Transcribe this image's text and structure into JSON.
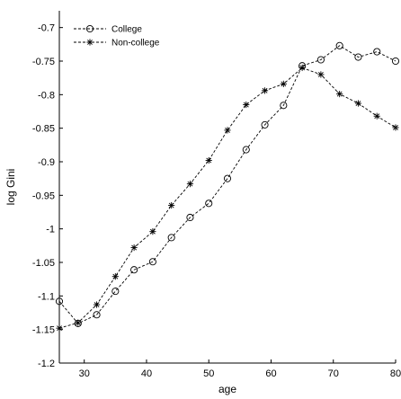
{
  "chart_data": {
    "type": "line",
    "title": "",
    "xlabel": "age",
    "ylabel": "log Gini",
    "xlim": [
      26,
      80
    ],
    "ylim": [
      -1.2,
      -0.675
    ],
    "grid": false,
    "legend_position": "top-left",
    "x_ticks": [
      30,
      40,
      50,
      60,
      70,
      80
    ],
    "y_ticks": [
      -0.7,
      -0.75,
      -0.8,
      -0.85,
      -0.9,
      -0.95,
      -1,
      -1.05,
      -1.1,
      -1.15,
      -1.2
    ],
    "x_tick_labels": [
      "30",
      "40",
      "50",
      "60",
      "70",
      "80"
    ],
    "y_tick_labels": [
      "-0.7",
      "-0.75",
      "-0.8",
      "-0.85",
      "-0.9",
      "-0.95",
      "-1",
      "-1.05",
      "-1.1",
      "-1.15",
      "-1.2"
    ],
    "series": [
      {
        "name": "College",
        "marker": "circle",
        "color": "#000000",
        "x": [
          26,
          29,
          32,
          35,
          38,
          41,
          44,
          47,
          50,
          53,
          56,
          59,
          62,
          65,
          68,
          71,
          74,
          77,
          80
        ],
        "y": [
          -1.108,
          -1.141,
          -1.128,
          -1.093,
          -1.061,
          -1.049,
          -1.013,
          -0.983,
          -0.962,
          -0.925,
          -0.882,
          -0.845,
          -0.816,
          -0.757,
          -0.748,
          -0.727,
          -0.744,
          -0.736,
          -0.75
        ]
      },
      {
        "name": "Non-college",
        "marker": "asterisk",
        "color": "#000000",
        "x": [
          26,
          29,
          32,
          35,
          38,
          41,
          44,
          47,
          50,
          53,
          56,
          59,
          62,
          65,
          68,
          71,
          74,
          77,
          80
        ],
        "y": [
          -1.148,
          -1.14,
          -1.113,
          -1.071,
          -1.028,
          -1.004,
          -0.965,
          -0.933,
          -0.898,
          -0.853,
          -0.815,
          -0.794,
          -0.784,
          -0.76,
          -0.77,
          -0.799,
          -0.813,
          -0.832,
          -0.849
        ]
      }
    ]
  }
}
